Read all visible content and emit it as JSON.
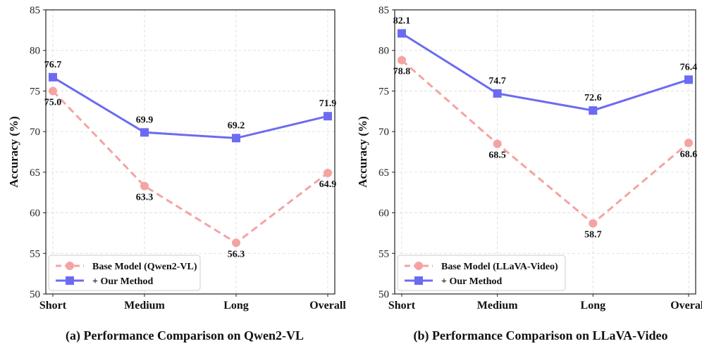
{
  "chart_data": [
    {
      "type": "line",
      "title": "(a) Performance Comparison on Qwen2-VL",
      "xlabel": "",
      "ylabel": "Accuracy (%)",
      "categories": [
        "Short",
        "Medium",
        "Long",
        "Overall"
      ],
      "ylim": [
        50,
        85
      ],
      "yticks": [
        50,
        55,
        60,
        65,
        70,
        75,
        80,
        85
      ],
      "grid": true,
      "legend_position": "bottom-left",
      "series": [
        {
          "name": "Base Model (Qwen2-VL)",
          "values": [
            75.0,
            63.3,
            56.3,
            64.9
          ],
          "labels": [
            "75.0",
            "63.3",
            "56.3",
            "64.9"
          ],
          "color": "#f4a3a3",
          "style": "dashed",
          "marker": "circle"
        },
        {
          "name": "+ Our Method",
          "values": [
            76.7,
            69.9,
            69.2,
            71.9
          ],
          "labels": [
            "76.7",
            "69.9",
            "69.2",
            "71.9"
          ],
          "color": "#6b6bf2",
          "style": "solid",
          "marker": "square"
        }
      ]
    },
    {
      "type": "line",
      "title": "(b) Performance Comparison on LLaVA-Video",
      "xlabel": "",
      "ylabel": "Accuracy (%)",
      "categories": [
        "Short",
        "Medium",
        "Long",
        "Overall"
      ],
      "ylim": [
        50,
        85
      ],
      "yticks": [
        50,
        55,
        60,
        65,
        70,
        75,
        80,
        85
      ],
      "grid": true,
      "legend_position": "bottom-left",
      "series": [
        {
          "name": "Base Model (LLaVA-Video)",
          "values": [
            78.8,
            68.5,
            58.7,
            68.6
          ],
          "labels": [
            "78.8",
            "68.5",
            "58.7",
            "68.6"
          ],
          "color": "#f4a3a3",
          "style": "dashed",
          "marker": "circle"
        },
        {
          "name": "+ Our Method",
          "values": [
            82.1,
            74.7,
            72.6,
            76.4
          ],
          "labels": [
            "82.1",
            "74.7",
            "72.6",
            "76.4"
          ],
          "color": "#6b6bf2",
          "style": "solid",
          "marker": "square"
        }
      ]
    }
  ]
}
